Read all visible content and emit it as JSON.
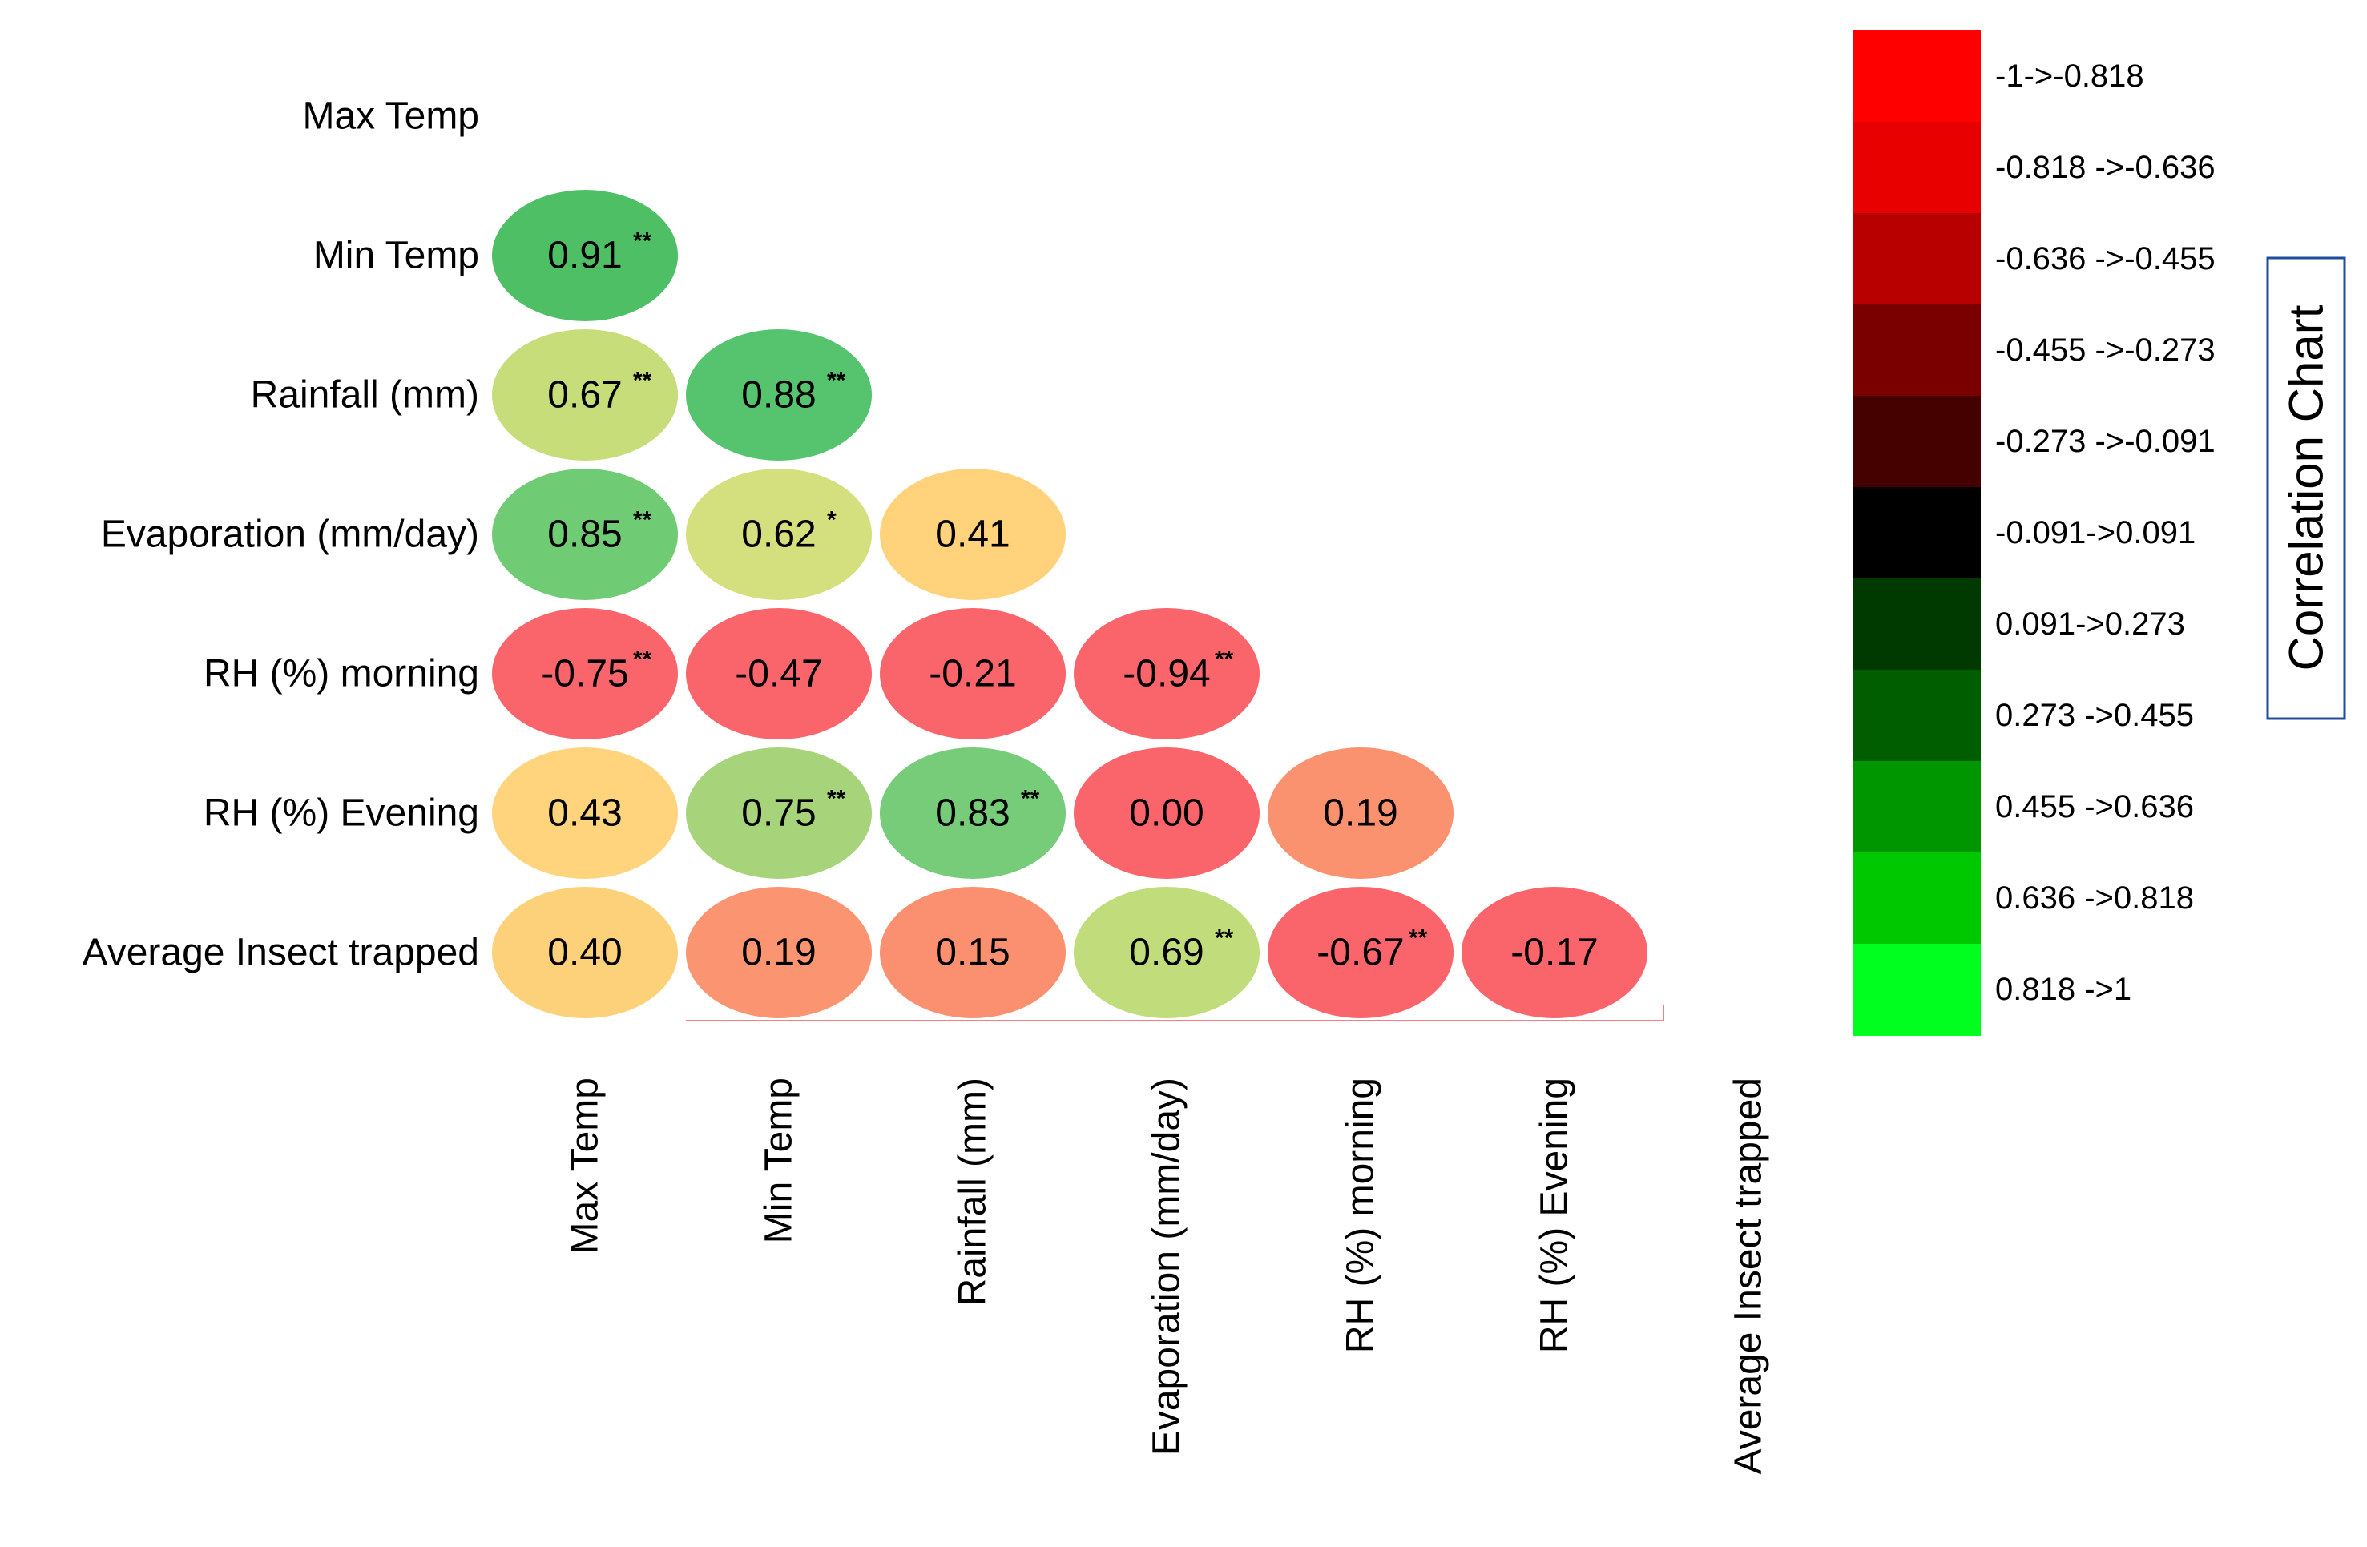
{
  "chart_data": {
    "type": "heatmap",
    "title": "Correlation Chart",
    "variables": [
      "Max Temp",
      "Min Temp",
      "Rainfall (mm)",
      "Evaporation (mm/day)",
      "RH (%) morning",
      "RH (%) Evening",
      "Average Insect trapped"
    ],
    "row_labels": [
      "Max Temp",
      "Min Temp",
      "Rainfall (mm)",
      "Evaporation (mm/day)",
      "RH (%) morning",
      "RH (%) Evening",
      "Average Insect trapped"
    ],
    "col_labels": [
      "Max Temp",
      "Min Temp",
      "Rainfall (mm)",
      "Evaporation (mm/day)",
      "RH (%) morning",
      "RH (%) Evening",
      "Average Insect trapped"
    ],
    "cells": [
      {
        "row": 1,
        "col": 0,
        "value": "0.91",
        "sig": "**",
        "color": "#4fbf66"
      },
      {
        "row": 2,
        "col": 0,
        "value": "0.67",
        "sig": "**",
        "color": "#c6dd79"
      },
      {
        "row": 2,
        "col": 1,
        "value": "0.88",
        "sig": "**",
        "color": "#56c46e"
      },
      {
        "row": 3,
        "col": 0,
        "value": "0.85",
        "sig": "**",
        "color": "#6fcb74"
      },
      {
        "row": 3,
        "col": 1,
        "value": "0.62",
        "sig": "*",
        "color": "#d4e07d"
      },
      {
        "row": 3,
        "col": 2,
        "value": "0.41",
        "sig": "",
        "color": "#ffd27b"
      },
      {
        "row": 4,
        "col": 0,
        "value": "-0.75",
        "sig": "**",
        "color": "#f9656a"
      },
      {
        "row": 4,
        "col": 1,
        "value": "-0.47",
        "sig": "",
        "color": "#f9656a"
      },
      {
        "row": 4,
        "col": 2,
        "value": "-0.21",
        "sig": "",
        "color": "#f9656a"
      },
      {
        "row": 4,
        "col": 3,
        "value": "-0.94",
        "sig": "**",
        "color": "#f9656a"
      },
      {
        "row": 5,
        "col": 0,
        "value": "0.43",
        "sig": "",
        "color": "#ffd47c"
      },
      {
        "row": 5,
        "col": 1,
        "value": "0.75",
        "sig": "**",
        "color": "#a7d47a"
      },
      {
        "row": 5,
        "col": 2,
        "value": "0.83",
        "sig": "**",
        "color": "#76cc78"
      },
      {
        "row": 5,
        "col": 3,
        "value": "0.00",
        "sig": "",
        "color": "#f9656a"
      },
      {
        "row": 5,
        "col": 4,
        "value": "0.19",
        "sig": "",
        "color": "#fa9270"
      },
      {
        "row": 6,
        "col": 0,
        "value": "0.40",
        "sig": "",
        "color": "#fdd17a"
      },
      {
        "row": 6,
        "col": 1,
        "value": "0.19",
        "sig": "",
        "color": "#fa9471"
      },
      {
        "row": 6,
        "col": 2,
        "value": "0.15",
        "sig": "",
        "color": "#fa9070"
      },
      {
        "row": 6,
        "col": 3,
        "value": "0.69",
        "sig": "**",
        "color": "#c1dc7a"
      },
      {
        "row": 6,
        "col": 4,
        "value": "-0.67",
        "sig": "**",
        "color": "#f9656a"
      },
      {
        "row": 6,
        "col": 5,
        "value": "-0.17",
        "sig": "",
        "color": "#f9656a"
      }
    ],
    "legend": {
      "title": "Correlation Chart",
      "bins": [
        {
          "label": "-1->-0.818",
          "color": "#ff0000"
        },
        {
          "label": "-0.818 ->-0.636",
          "color": "#e80000"
        },
        {
          "label": "-0.636 ->-0.455",
          "color": "#b80000"
        },
        {
          "label": "-0.455 ->-0.273",
          "color": "#7a0000"
        },
        {
          "label": "-0.273 ->-0.091",
          "color": "#450000"
        },
        {
          "label": "-0.091->0.091",
          "color": "#000000"
        },
        {
          "label": "0.091->0.273",
          "color": "#003a00"
        },
        {
          "label": "0.273 ->0.455",
          "color": "#005e00"
        },
        {
          "label": "0.455 ->0.636",
          "color": "#009600"
        },
        {
          "label": "0.636 ->0.818",
          "color": "#00c800"
        },
        {
          "label": "0.818 ->1",
          "color": "#00ff1f"
        }
      ]
    }
  }
}
